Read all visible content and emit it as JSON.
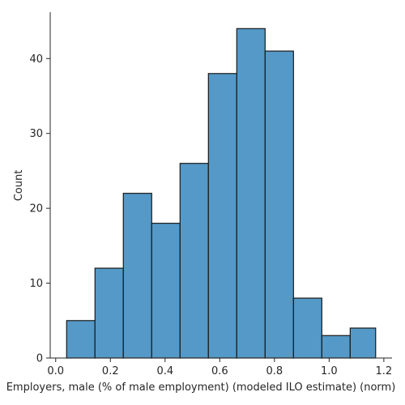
{
  "chart_data": {
    "type": "bar",
    "subtype": "histogram",
    "xlabel": "Employers, male (% of male employment) (modeled ILO estimate) (norm)",
    "ylabel": "Count",
    "bar_color": "#5499c7",
    "edge_color": "#1a1a1a",
    "xlim": [
      -0.02,
      1.23
    ],
    "ylim": [
      0,
      46.2
    ],
    "xticks": [
      0.0,
      0.2,
      0.4,
      0.6,
      0.8,
      1.0,
      1.2
    ],
    "xtick_labels": [
      "0.0",
      "0.2",
      "0.4",
      "0.6",
      "0.8",
      "1.0",
      "1.2"
    ],
    "yticks": [
      0,
      10,
      20,
      30,
      40
    ],
    "ytick_labels": [
      "0",
      "10",
      "20",
      "30",
      "40"
    ],
    "bin_edges": [
      0.04,
      0.1437,
      0.2474,
      0.3511,
      0.4548,
      0.5585,
      0.6622,
      0.7659,
      0.8696,
      0.9733,
      1.077,
      1.17
    ],
    "counts": [
      5,
      12,
      22,
      18,
      26,
      38,
      44,
      41,
      8,
      3,
      4
    ],
    "grid": false,
    "legend": "none"
  }
}
